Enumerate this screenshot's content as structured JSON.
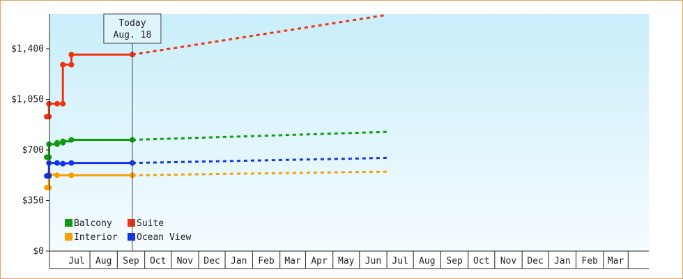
{
  "chart_data": {
    "type": "line",
    "step": true,
    "x_axis_unit": "month",
    "x_start": "2019-06",
    "x_end": "2020-03",
    "month_labels": [
      "Jul",
      "Aug",
      "Sep",
      "Oct",
      "Nov",
      "Dec",
      "Jan",
      "Feb",
      "Mar",
      "Apr",
      "May",
      "Jun",
      "Jul",
      "Aug",
      "Sep",
      "Oct",
      "Nov",
      "Dec",
      "Jan",
      "Feb",
      "Mar"
    ],
    "ylim": [
      0,
      1400
    ],
    "y_ticks": [
      {
        "value": 0,
        "label": "$0"
      },
      {
        "value": 350,
        "label": "$350"
      },
      {
        "value": 700,
        "label": "$700"
      },
      {
        "value": 1050,
        "label": "$1,050"
      },
      {
        "value": 1400,
        "label": "$1,400"
      }
    ],
    "today": {
      "line1": "Today",
      "line2": "Aug. 18",
      "date": "2019-08-18"
    },
    "series": [
      {
        "name": "Balcony",
        "color": "#119911",
        "points": [
          [
            "2018-06-01",
            650
          ],
          [
            "2018-07-20",
            650
          ],
          [
            "2018-07-20",
            740
          ],
          [
            "2019-01-15",
            740
          ],
          [
            "2019-01-15",
            750
          ],
          [
            "2019-05-20",
            750
          ],
          [
            "2019-05-20",
            760
          ],
          [
            "2019-06-10",
            760
          ],
          [
            "2019-06-10",
            770
          ],
          [
            "2019-08-18",
            770
          ]
        ],
        "markers": [
          [
            "2018-06-01",
            650
          ],
          [
            "2018-07-20",
            650
          ],
          [
            "2018-07-20",
            740
          ],
          [
            "2019-01-15",
            740
          ],
          [
            "2019-01-15",
            750
          ],
          [
            "2019-05-20",
            750
          ],
          [
            "2019-05-20",
            760
          ],
          [
            "2019-06-10",
            770
          ],
          [
            "2019-08-18",
            770
          ]
        ],
        "forecast": [
          [
            "2019-08-18",
            770
          ],
          [
            "2020-06-01",
            825
          ]
        ]
      },
      {
        "name": "Suite",
        "color": "#ee3311",
        "points": [
          [
            "2018-06-01",
            930
          ],
          [
            "2018-07-20",
            930
          ],
          [
            "2018-07-20",
            1020
          ],
          [
            "2019-01-15",
            1020
          ],
          [
            "2019-05-20",
            1020
          ],
          [
            "2019-05-20",
            1290
          ],
          [
            "2019-06-10",
            1290
          ],
          [
            "2019-06-10",
            1360
          ],
          [
            "2019-08-18",
            1360
          ]
        ],
        "markers": [
          [
            "2018-06-01",
            930
          ],
          [
            "2018-07-20",
            930
          ],
          [
            "2018-07-20",
            1020
          ],
          [
            "2019-01-15",
            1020
          ],
          [
            "2019-05-20",
            1020
          ],
          [
            "2019-05-20",
            1290
          ],
          [
            "2019-06-10",
            1290
          ],
          [
            "2019-06-10",
            1360
          ],
          [
            "2019-08-18",
            1360
          ]
        ],
        "forecast": [
          [
            "2019-08-18",
            1360
          ],
          [
            "2020-06-01",
            1635
          ]
        ]
      },
      {
        "name": "Interior",
        "color": "#f7a000",
        "points": [
          [
            "2018-06-01",
            440
          ],
          [
            "2018-07-20",
            440
          ],
          [
            "2018-07-20",
            530
          ],
          [
            "2019-01-15",
            530
          ],
          [
            "2019-01-15",
            525
          ],
          [
            "2019-06-10",
            525
          ],
          [
            "2019-08-18",
            525
          ]
        ],
        "markers": [
          [
            "2018-06-01",
            440
          ],
          [
            "2018-07-20",
            440
          ],
          [
            "2018-07-20",
            530
          ],
          [
            "2019-01-15",
            525
          ],
          [
            "2019-06-10",
            525
          ],
          [
            "2019-08-18",
            525
          ]
        ],
        "forecast": [
          [
            "2019-08-18",
            525
          ],
          [
            "2020-06-01",
            550
          ]
        ]
      },
      {
        "name": "Ocean View",
        "color": "#1133ee",
        "points": [
          [
            "2018-06-01",
            520
          ],
          [
            "2018-07-20",
            520
          ],
          [
            "2018-07-20",
            610
          ],
          [
            "2019-01-15",
            610
          ],
          [
            "2019-01-15",
            605
          ],
          [
            "2019-05-20",
            605
          ],
          [
            "2019-06-10",
            610
          ],
          [
            "2019-08-18",
            610
          ]
        ],
        "markers": [
          [
            "2018-06-01",
            520
          ],
          [
            "2018-07-20",
            520
          ],
          [
            "2018-07-20",
            610
          ],
          [
            "2019-01-15",
            610
          ],
          [
            "2019-05-20",
            605
          ],
          [
            "2019-06-10",
            610
          ],
          [
            "2019-08-18",
            610
          ]
        ],
        "forecast": [
          [
            "2019-08-18",
            610
          ],
          [
            "2020-06-01",
            645
          ]
        ]
      }
    ],
    "legend": [
      {
        "name": "Balcony",
        "color": "#119911"
      },
      {
        "name": "Suite",
        "color": "#ee3311"
      },
      {
        "name": "Interior",
        "color": "#f7a000"
      },
      {
        "name": "Ocean View",
        "color": "#1133ee"
      }
    ],
    "grid": false,
    "legend_position": "bottom-left"
  }
}
